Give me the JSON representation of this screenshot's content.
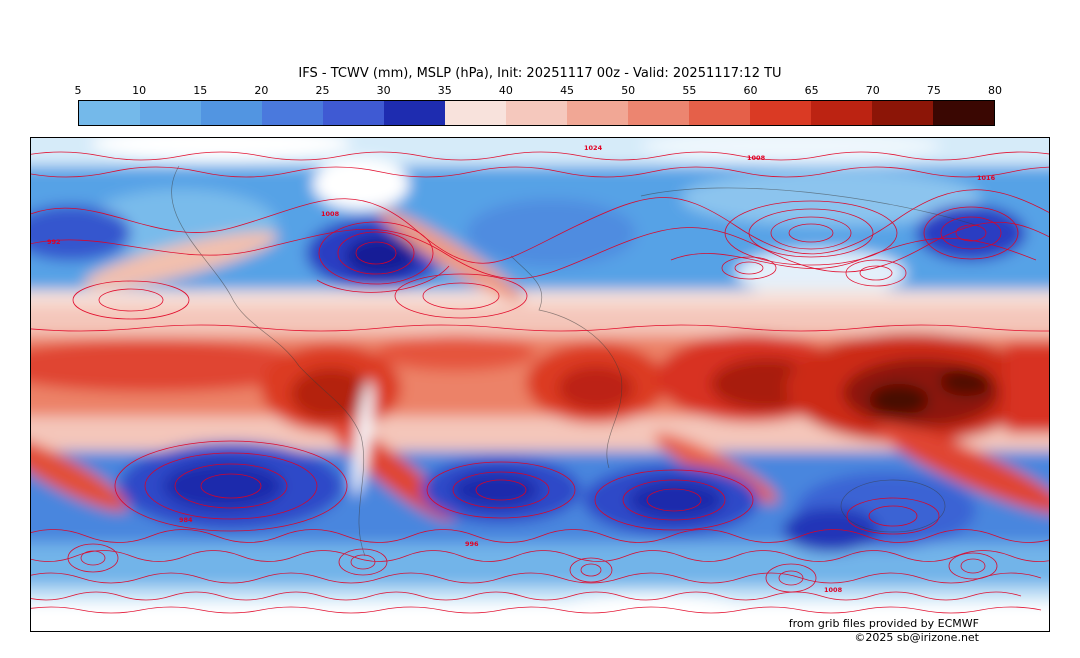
{
  "header": {
    "title": "IFS - TCWV (mm), MSLP (hPa), Init: 20251117 00z - Valid: 20251117:12 TU"
  },
  "chart_data": {
    "type": "heatmap",
    "title": "IFS - TCWV (mm), MSLP (hPa), Init: 20251117 00z - Valid: 20251117:12 TU",
    "model": "IFS",
    "shaded_variable": "TCWV",
    "shaded_units": "mm",
    "contour_variable": "MSLP",
    "contour_units": "hPa",
    "init_time": "20251117 00z",
    "valid_time": "20251117:12 TU",
    "region": "global",
    "colorbar": {
      "orientation": "horizontal",
      "ticks": [
        "5",
        "10",
        "15",
        "20",
        "25",
        "30",
        "35",
        "40",
        "45",
        "50",
        "55",
        "60",
        "65",
        "70",
        "75",
        "80"
      ],
      "colors": [
        "#74b9ea",
        "#63a9e7",
        "#5295e1",
        "#4a79dd",
        "#3f5ad3",
        "#1e2cb0",
        "#f8e2dc",
        "#f5c8bd",
        "#f1a795",
        "#ec8570",
        "#e56049",
        "#da3a24",
        "#bc2312",
        "#8c1507",
        "#3a0702"
      ]
    },
    "contour_color": "#e10022",
    "contour_labels_visible": [
      "1024",
      "1008",
      "992",
      "1016",
      "996",
      "984"
    ]
  },
  "map": {
    "contour_labels": [
      "1024",
      "1008",
      "992",
      "1008",
      "1016",
      "996",
      "984",
      "1008"
    ],
    "attribution_line1": "from grib files provided by ECMWF",
    "attribution_line2": "©2025 sb@irizone.net"
  }
}
